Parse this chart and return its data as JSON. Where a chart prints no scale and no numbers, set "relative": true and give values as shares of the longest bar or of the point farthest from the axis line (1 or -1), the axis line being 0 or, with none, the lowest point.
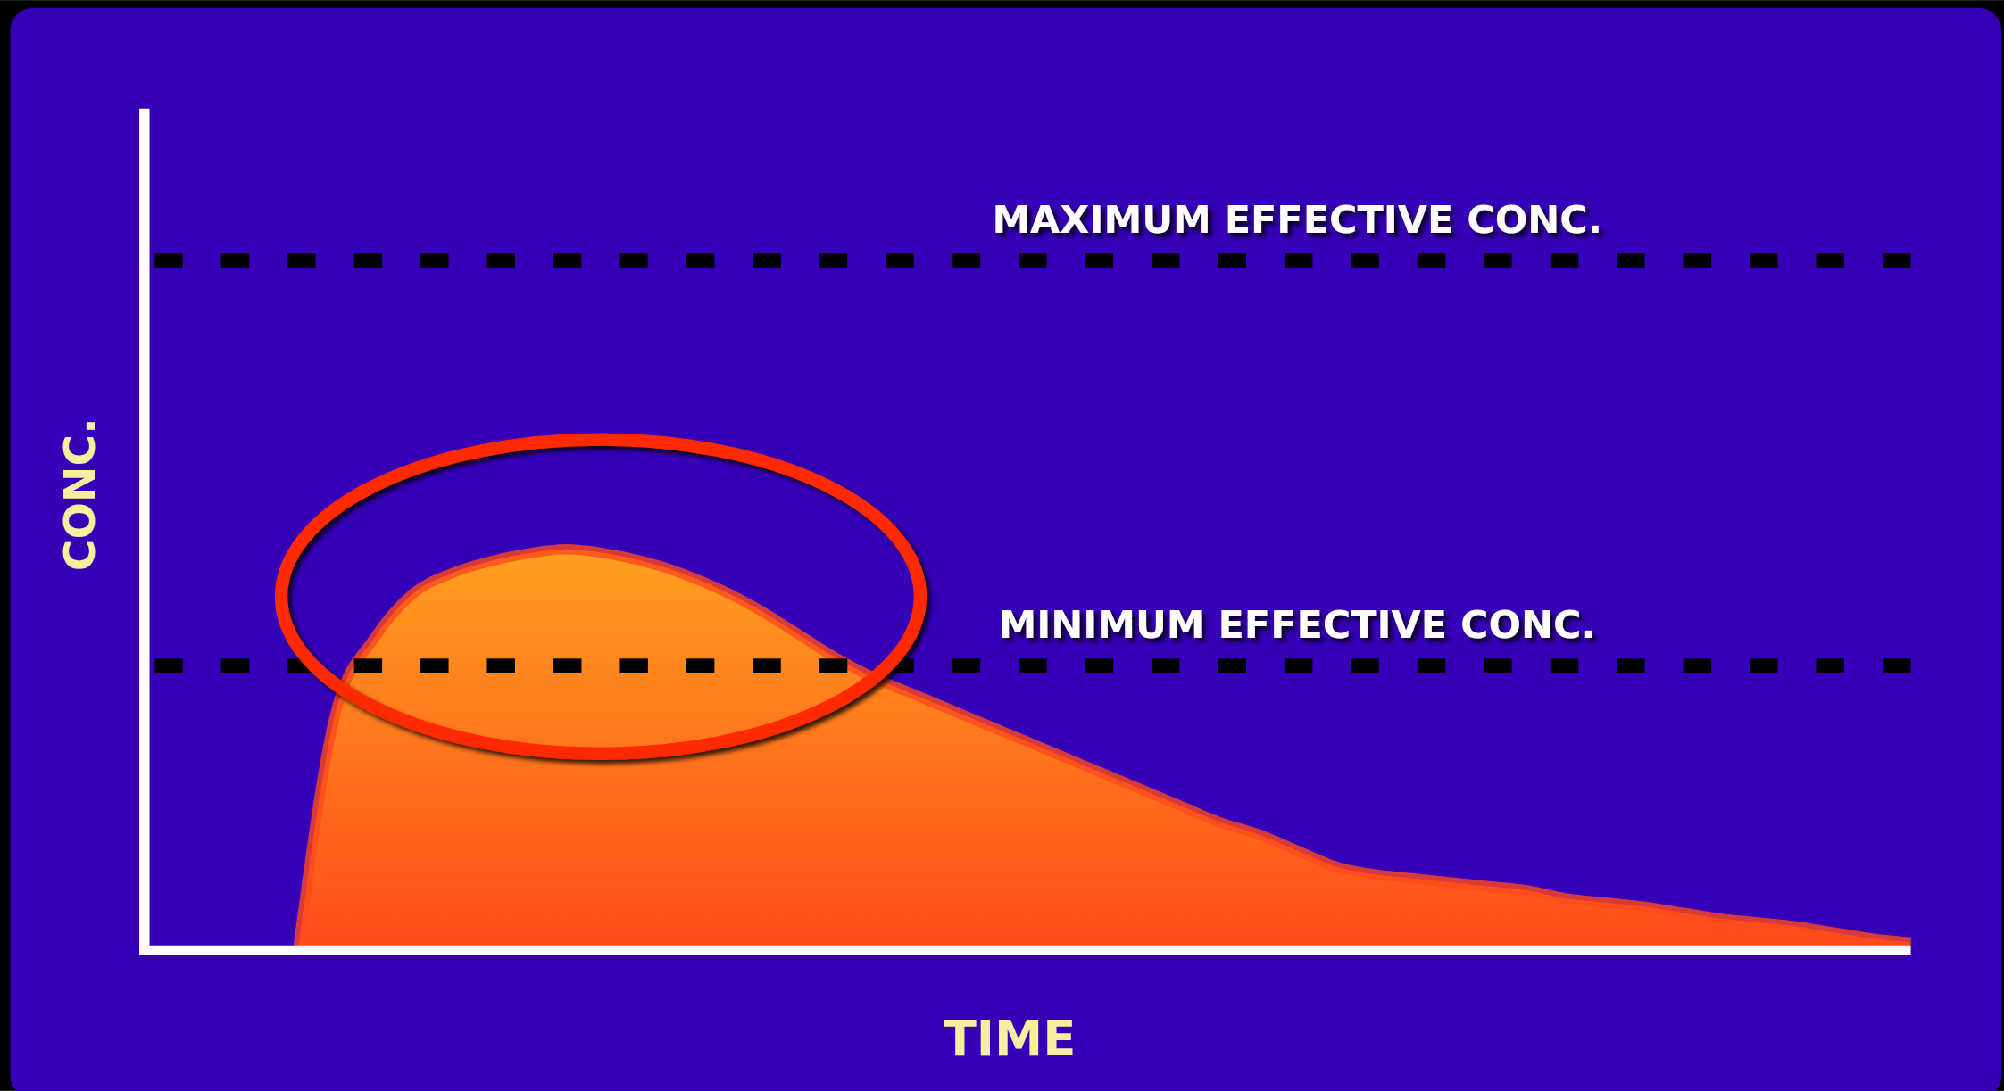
{
  "chart_data": {
    "type": "area",
    "relative": true,
    "xlabel": "TIME",
    "ylabel": "CONC.",
    "categories": [
      null,
      null,
      null,
      null,
      null,
      null,
      null,
      null,
      null,
      null,
      null,
      null,
      null,
      null,
      null,
      null,
      null,
      null,
      null,
      null,
      null,
      null,
      null,
      null,
      null,
      null,
      null,
      null,
      null,
      null,
      null,
      null,
      null,
      null,
      null,
      null,
      null,
      null,
      null,
      null,
      null,
      null,
      null,
      null,
      null,
      null,
      null
    ],
    "series": [
      {
        "color": "#ff4a1a",
        "values": [
          null,
          null,
          null,
          null,
          0,
          0.6,
          0.78,
          0.89,
          0.94,
          0.97,
          0.99,
          1,
          0.99,
          0.97,
          0.94,
          0.9,
          0.85,
          0.79,
          0.73,
          0.68,
          0.64,
          0.6,
          0.56,
          0.52,
          0.48,
          0.44,
          0.4,
          0.36,
          0.32,
          0.29,
          0.25,
          0.21,
          0.19,
          0.18,
          0.17,
          0.16,
          0.15,
          0.13,
          0.12,
          0.11,
          0.095,
          0.08,
          0.07,
          0.06,
          0.045,
          0.03,
          0.02
        ]
      }
    ],
    "ref_lines": [
      {
        "axis": "y",
        "value": 1.72,
        "label": "MAXIMUM EFFECTIVE CONC.",
        "color": "#000000",
        "line_style": "dashed"
      },
      {
        "axis": "y",
        "value": 0.71,
        "label": "MINIMUM EFFECTIVE CONC.",
        "color": "#000000",
        "line_style": "dashed"
      }
    ]
  }
}
